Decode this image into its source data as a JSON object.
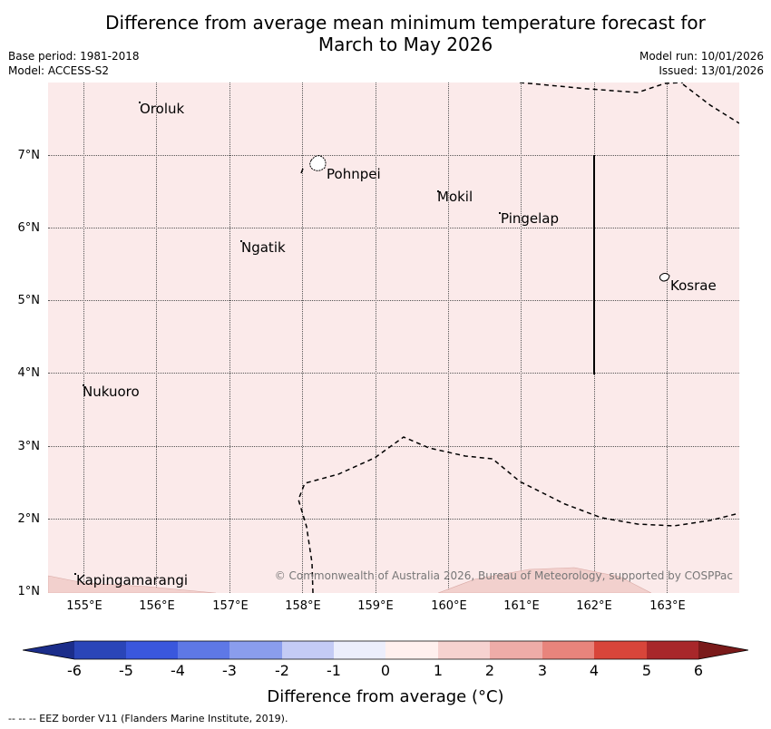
{
  "header": {
    "title_line1": "Difference from average mean minimum temperature forecast for",
    "title_line2": "March to May 2026",
    "base_period": "Base period: 1981-2018",
    "model": "Model: ACCESS-S2",
    "model_run": "Model run: 10/01/2026",
    "issued": "Issued: 13/01/2026"
  },
  "map": {
    "background_color": "#fbeaea",
    "latitude_labels": [
      "7°N",
      "6°N",
      "5°N",
      "4°N",
      "3°N",
      "2°N",
      "1°N"
    ],
    "longitude_labels": [
      "155°E",
      "156°E",
      "157°E",
      "158°E",
      "159°E",
      "160°E",
      "161°E",
      "162°E",
      "163°E"
    ],
    "places": [
      "Oroluk",
      "Pohnpei",
      "Mokil",
      "Pingelap",
      "Ngatik",
      "Kosrae",
      "Nukuoro",
      "Kapingamarangi"
    ],
    "copyright": "© Commonwealth of Australia 2026, Bureau of Meteorology, supported by COSPPac"
  },
  "colorbar": {
    "ticks": [
      "-6",
      "-5",
      "-4",
      "-3",
      "-2",
      "-1",
      "0",
      "1",
      "2",
      "3",
      "4",
      "5",
      "6"
    ],
    "colors": [
      "#1b2d8a",
      "#2a45b8",
      "#3a57dd",
      "#5e78e6",
      "#8a9ded",
      "#c4cbf5",
      "#eceefc",
      "#fff0ee",
      "#f6d2d0",
      "#eeaca8",
      "#e8847c",
      "#d8453a",
      "#a8272a",
      "#7a1a1a"
    ],
    "label": "Difference from average (°C)"
  },
  "legend": {
    "eez_text": "--  --  -- EEZ border V11 (Flanders Marine Institute, 2019)."
  }
}
